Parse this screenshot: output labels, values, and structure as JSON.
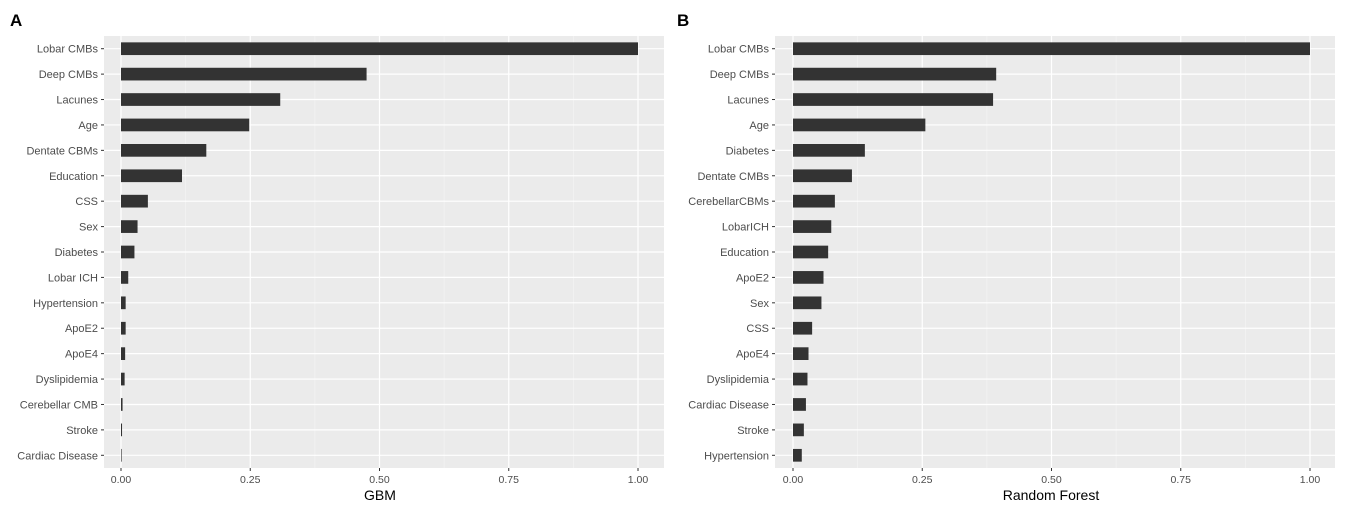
{
  "chart_data": [
    {
      "type": "bar",
      "orientation": "horizontal",
      "panel_label": "A",
      "xlabel": "GBM",
      "xlim": [
        0,
        1
      ],
      "xticks": [
        "0.00",
        "0.25",
        "0.50",
        "0.75",
        "1.00"
      ],
      "xtick_values": [
        0,
        0.25,
        0.5,
        0.75,
        1.0
      ],
      "grid": true,
      "bar_color": "#333333",
      "categories": [
        "Lobar CMBs",
        "Deep CMBs",
        "Lacunes",
        "Age",
        "Dentate  CBMs",
        "Education",
        "CSS",
        "Sex",
        "Diabetes",
        "Lobar ICH",
        "Hypertension",
        "ApoE2",
        "ApoE4",
        "Dyslipidemia",
        "Cerebellar CMB",
        "Stroke",
        "Cardiac Disease"
      ],
      "values": [
        1.0,
        0.475,
        0.308,
        0.248,
        0.165,
        0.118,
        0.052,
        0.032,
        0.026,
        0.014,
        0.009,
        0.009,
        0.008,
        0.007,
        0.003,
        0.002,
        0.0
      ]
    },
    {
      "type": "bar",
      "orientation": "horizontal",
      "panel_label": "B",
      "xlabel": "Random Forest",
      "xlim": [
        0,
        1
      ],
      "xticks": [
        "0.00",
        "0.25",
        "0.50",
        "0.75",
        "1.00"
      ],
      "xtick_values": [
        0,
        0.25,
        0.5,
        0.75,
        1.0
      ],
      "grid": true,
      "bar_color": "#333333",
      "categories": [
        "Lobar CMBs",
        "Deep CMBs",
        "Lacunes",
        "Age",
        "Diabetes",
        "Dentate CMBs",
        "CerebellarCBMs",
        "LobarICH",
        "Education",
        "ApoE2",
        "Sex",
        "CSS",
        "ApoE4",
        "Dyslipidemia",
        "Cardiac Disease",
        "Stroke",
        "Hypertension"
      ],
      "values": [
        1.0,
        0.393,
        0.387,
        0.256,
        0.139,
        0.114,
        0.081,
        0.074,
        0.068,
        0.059,
        0.055,
        0.037,
        0.03,
        0.028,
        0.025,
        0.021,
        0.017
      ]
    }
  ]
}
